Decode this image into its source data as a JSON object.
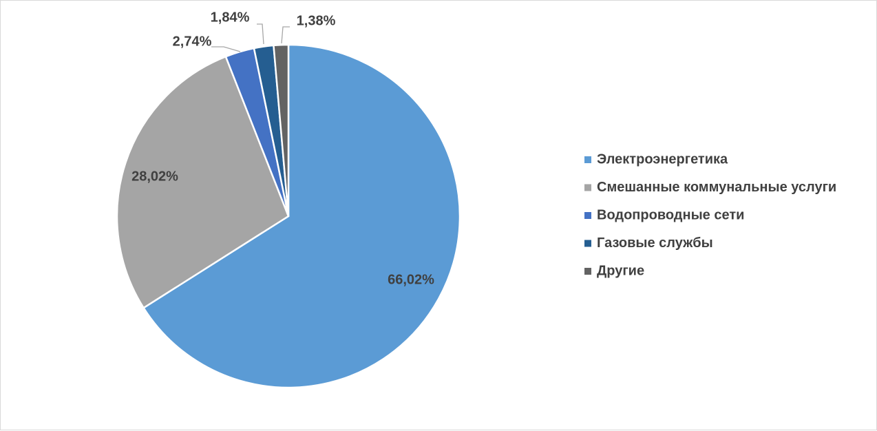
{
  "chart_data": {
    "type": "pie",
    "title": "",
    "legend_position": "right",
    "categories": [
      "Электроэнергетика",
      "Смешанные коммунальные услуги",
      "Водопроводные сети",
      "Газовые службы",
      "Другие"
    ],
    "values": [
      66.02,
      28.02,
      2.74,
      1.84,
      1.38
    ],
    "labels": [
      "66,02%",
      "28,02%",
      "2,74%",
      "1,84%",
      "1,38%"
    ],
    "colors": [
      "#5b9bd5",
      "#a5a5a5",
      "#4472c4",
      "#255e91",
      "#636363"
    ]
  }
}
